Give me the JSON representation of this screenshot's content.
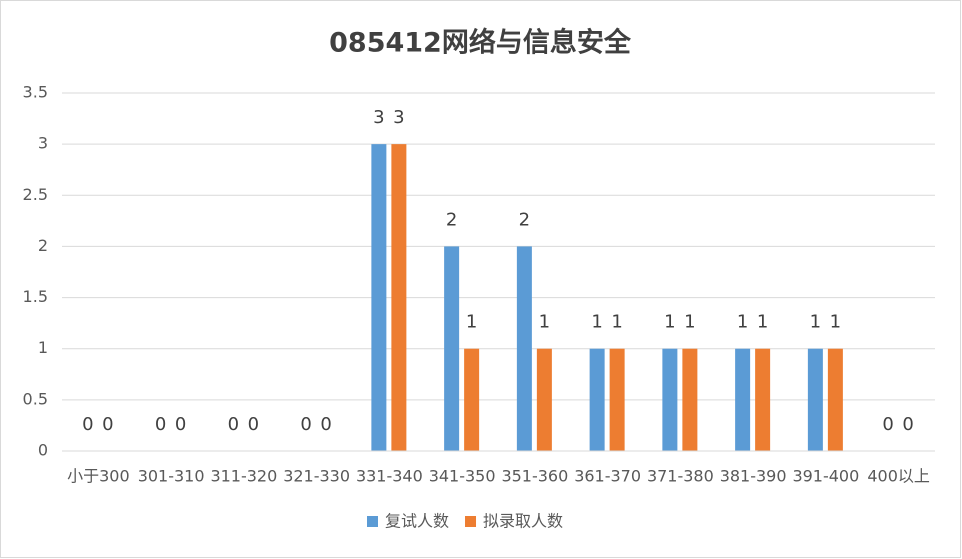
{
  "chart_data": {
    "type": "bar",
    "title": "085412网络与信息安全",
    "categories": [
      "小于300",
      "301-310",
      "311-320",
      "321-330",
      "331-340",
      "341-350",
      "351-360",
      "361-370",
      "371-380",
      "381-390",
      "391-400",
      "400以上"
    ],
    "series": [
      {
        "name": "复试人数",
        "color": "#5b9bd5",
        "values": [
          0,
          0,
          0,
          0,
          3,
          2,
          2,
          1,
          1,
          1,
          1,
          0
        ]
      },
      {
        "name": "拟录取人数",
        "color": "#ed7d31",
        "values": [
          0,
          0,
          0,
          0,
          3,
          1,
          1,
          1,
          1,
          1,
          1,
          0
        ]
      }
    ],
    "ylim": [
      0,
      3.5
    ],
    "yticks": [
      0,
      0.5,
      1,
      1.5,
      2,
      2.5,
      3,
      3.5
    ],
    "grid": true,
    "legend": "bottom"
  }
}
